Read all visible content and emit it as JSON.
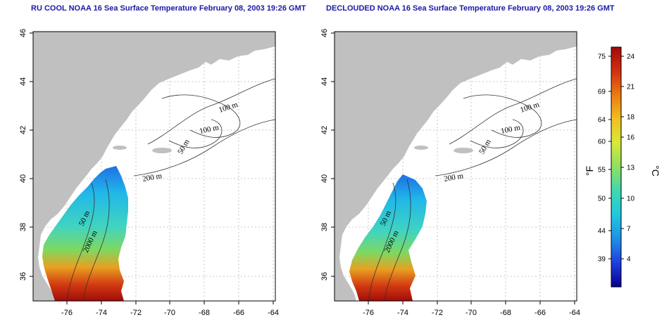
{
  "panels": [
    {
      "id": "rucool",
      "title": "RU COOL NOAA 16 Sea Surface Temperature February 08, 2003 19:26 GMT",
      "x_ticks": [
        "-76",
        "-74",
        "-72",
        "-70",
        "-68",
        "-66",
        "-64"
      ],
      "y_ticks": [
        "46",
        "44",
        "42",
        "40",
        "38",
        "36"
      ],
      "contour_labels": [
        "100 m",
        "100 m",
        "50 m",
        "200 m",
        "50 m",
        "2000 m"
      ]
    },
    {
      "id": "declouded",
      "title": "DECLOUDED NOAA 16 Sea Surface Temperature February 08, 2003 19:26 GMT",
      "x_ticks": [
        "-76",
        "-74",
        "-72",
        "-70",
        "-68",
        "-66",
        "-64"
      ],
      "y_ticks": [
        "46",
        "44",
        "42",
        "40",
        "38",
        "36"
      ],
      "contour_labels": [
        "100 m",
        "100 m",
        "50 m",
        "200 m",
        "50 m",
        "2000 m"
      ]
    }
  ],
  "colorbar": {
    "fahrenheit_label": "°F",
    "celsius_label": "°C",
    "fahrenheit_ticks": [
      "75",
      "69",
      "64",
      "60",
      "55",
      "50",
      "44",
      "39"
    ],
    "celsius_ticks": [
      "24",
      "21",
      "18",
      "16",
      "13",
      "10",
      "7",
      "4"
    ],
    "colors": [
      "#08008f",
      "#1f3fe0",
      "#1f8fe8",
      "#20c8e0",
      "#3fd8b0",
      "#8ee060",
      "#d8e83a",
      "#f2c020",
      "#ee7a12",
      "#d23010",
      "#a00a0a"
    ]
  },
  "colors": {
    "land": "#c0c0c0",
    "title": "#1a1aa6",
    "grid": "#b8b8b8"
  }
}
